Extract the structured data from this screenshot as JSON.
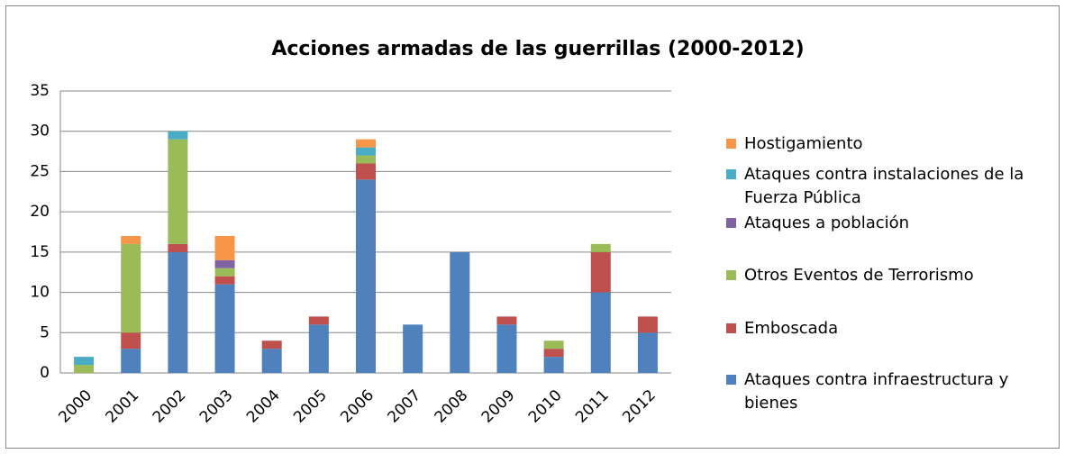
{
  "chart_data": {
    "type": "stacked_bar",
    "title": "Acciones armadas de las guerrillas (2000-2012)",
    "categories": [
      "2000",
      "2001",
      "2002",
      "2003",
      "2004",
      "2005",
      "2006",
      "2007",
      "2008",
      "2009",
      "2010",
      "2011",
      "2012"
    ],
    "series": [
      {
        "name": "Ataques contra infraestructura y bienes",
        "color": "#4f81bd",
        "values": [
          0,
          3,
          15,
          11,
          3,
          6,
          24,
          6,
          15,
          6,
          2,
          10,
          5
        ]
      },
      {
        "name": "Emboscada",
        "color": "#c0504d",
        "values": [
          0,
          2,
          1,
          1,
          1,
          1,
          2,
          0,
          0,
          1,
          1,
          5,
          2
        ]
      },
      {
        "name": "Otros Eventos de Terrorismo",
        "color": "#9bbb59",
        "values": [
          1,
          11,
          13,
          1,
          0,
          0,
          1,
          0,
          0,
          0,
          1,
          1,
          0
        ]
      },
      {
        "name": "Ataques a población",
        "color": "#8064a2",
        "values": [
          0,
          0,
          0,
          1,
          0,
          0,
          0,
          0,
          0,
          0,
          0,
          0,
          0
        ]
      },
      {
        "name": "Ataques contra instalaciones de la Fuerza Pública",
        "color": "#4bacc6",
        "values": [
          1,
          0,
          1,
          0,
          0,
          0,
          1,
          0,
          0,
          0,
          0,
          0,
          0
        ]
      },
      {
        "name": "Hostigamiento",
        "color": "#f79646",
        "values": [
          0,
          1,
          0,
          3,
          0,
          0,
          1,
          0,
          0,
          0,
          0,
          0,
          0
        ]
      }
    ],
    "ylim": [
      0,
      35
    ],
    "yticks": [
      0,
      5,
      10,
      15,
      20,
      25,
      30,
      35
    ],
    "grid": true
  }
}
